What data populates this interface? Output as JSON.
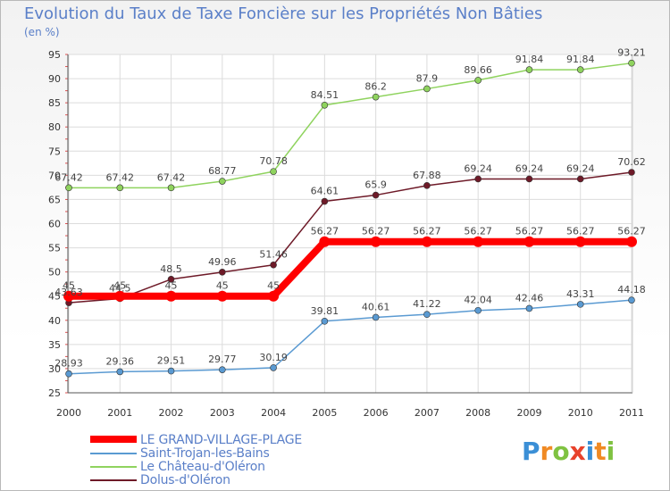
{
  "chart_data": {
    "type": "line",
    "title": "Evolution du Taux de Taxe Foncière sur les Propriétés Non Bâties",
    "ylabel": "(en %)",
    "xlabel": "",
    "categories": [
      "2000",
      "2001",
      "2002",
      "2003",
      "2004",
      "2005",
      "2006",
      "2007",
      "2008",
      "2009",
      "2010",
      "2011"
    ],
    "ylim": [
      25,
      95
    ],
    "yticks": [
      25,
      30,
      35,
      40,
      45,
      50,
      55,
      60,
      65,
      70,
      75,
      80,
      85,
      90,
      95
    ],
    "grid": true,
    "legend_position": "bottom-left",
    "series": [
      {
        "name": "Dolus-d'Oléron",
        "color": "#6e1a28",
        "values": [
          43.63,
          44.5,
          48.5,
          49.96,
          51.46,
          64.61,
          65.9,
          67.88,
          69.24,
          69.24,
          69.24,
          70.62
        ],
        "labels": [
          "43.63",
          "44.5",
          "48.5",
          "49.96",
          "51.46",
          "64.61",
          "65.9",
          "67.88",
          "69.24",
          "69.24",
          "69.24",
          "70.62"
        ]
      },
      {
        "name": "Le Château-d'Oléron",
        "color": "#8fd35e",
        "values": [
          67.42,
          67.42,
          67.42,
          68.77,
          70.78,
          84.51,
          86.2,
          87.9,
          89.66,
          91.84,
          91.84,
          93.21
        ],
        "labels": [
          "67.42",
          "67.42",
          "67.42",
          "68.77",
          "70.78",
          "84.51",
          "86.2",
          "87.9",
          "89.66",
          "91.84",
          "91.84",
          "93.21"
        ]
      },
      {
        "name": "Saint-Trojan-les-Bains",
        "color": "#5a9ad2",
        "values": [
          28.93,
          29.36,
          29.51,
          29.77,
          30.19,
          39.81,
          40.61,
          41.22,
          42.04,
          42.46,
          43.31,
          44.18
        ],
        "labels": [
          "28.93",
          "29.36",
          "29.51",
          "29.77",
          "30.19",
          "39.81",
          "40.61",
          "41.22",
          "42.04",
          "42.46",
          "43.31",
          "44.18"
        ]
      },
      {
        "name": "LE GRAND-VILLAGE-PLAGE",
        "color": "#ff0000",
        "values": [
          45,
          45,
          45,
          45,
          45,
          56.27,
          56.27,
          56.27,
          56.27,
          56.27,
          56.27,
          56.27
        ],
        "labels": [
          "45",
          "45",
          "45",
          "45",
          "45",
          "56.27",
          "56.27",
          "56.27",
          "56.27",
          "56.27",
          "56.27",
          "56.27"
        ]
      }
    ]
  },
  "legend": [
    {
      "label": "LE GRAND-VILLAGE-PLAGE",
      "color": "#ff0000"
    },
    {
      "label": "Saint-Trojan-les-Bains",
      "color": "#5a9ad2"
    },
    {
      "label": "Le Château-d'Oléron",
      "color": "#8fd35e"
    },
    {
      "label": "Dolus-d'Oléron",
      "color": "#6e1a28"
    }
  ],
  "logo": {
    "letters": [
      "P",
      "r",
      "o",
      "x",
      "i",
      "t",
      "i"
    ],
    "colors": [
      "#3b8fd6",
      "#f08a24",
      "#7fc241",
      "#e8422b",
      "#3b8fd6",
      "#f08a24",
      "#7fc241"
    ]
  }
}
